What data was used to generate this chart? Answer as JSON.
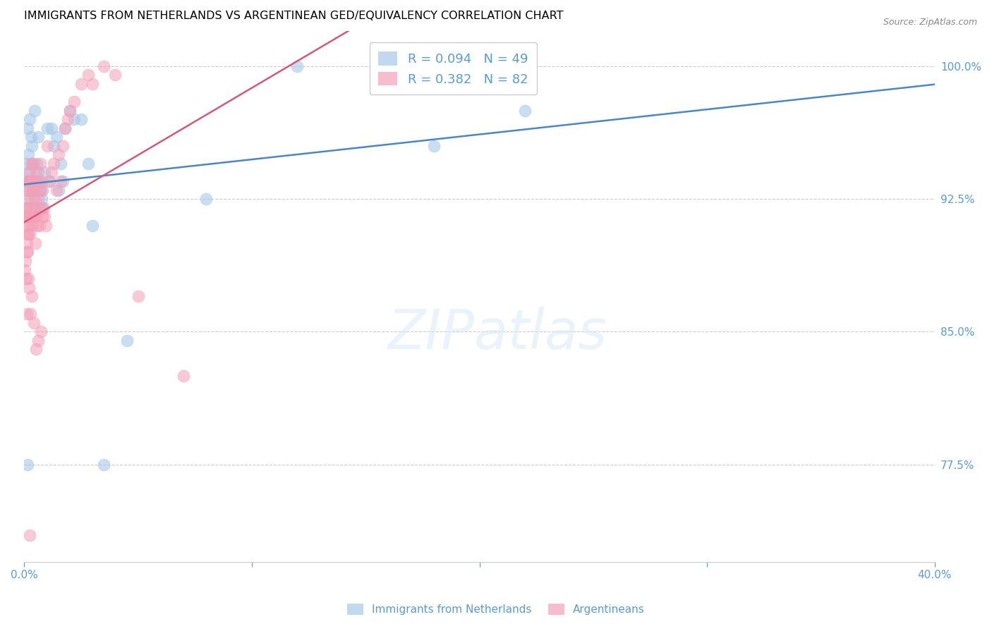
{
  "title": "IMMIGRANTS FROM NETHERLANDS VS ARGENTINEAN GED/EQUIVALENCY CORRELATION CHART",
  "source": "Source: ZipAtlas.com",
  "legend_label1": "Immigrants from Netherlands",
  "legend_label2": "Argentineans",
  "R1": 0.094,
  "N1": 49,
  "R2": 0.382,
  "N2": 82,
  "blue_color": "#a8c8e8",
  "pink_color": "#f4a0b8",
  "blue_line_color": "#4a86c8",
  "pink_line_color": "#d45878",
  "axis_color": "#5b9bd5",
  "xmin": 0.0,
  "xmax": 40.0,
  "ymin": 72.0,
  "ymax": 102.0,
  "ylabel_ticks": [
    100.0,
    92.5,
    85.0,
    77.5
  ],
  "ylabel_labels": [
    "100.0%",
    "92.5%",
    "85.0%",
    "77.5%"
  ],
  "blue_x": [
    0.05,
    0.08,
    0.1,
    0.12,
    0.15,
    0.18,
    0.2,
    0.22,
    0.25,
    0.28,
    0.3,
    0.32,
    0.35,
    0.38,
    0.4,
    0.45,
    0.5,
    0.55,
    0.6,
    0.65,
    0.7,
    0.75,
    0.8,
    0.9,
    1.0,
    1.1,
    1.2,
    1.3,
    1.4,
    1.5,
    1.6,
    1.8,
    2.0,
    2.2,
    2.5,
    3.0,
    3.5,
    8.0,
    12.0,
    18.0,
    22.0,
    1.7,
    2.8,
    0.42,
    0.52,
    0.62,
    0.72,
    4.5,
    0.15
  ],
  "blue_y": [
    91.5,
    92.0,
    93.5,
    94.5,
    96.5,
    95.0,
    93.0,
    94.0,
    97.0,
    92.5,
    96.0,
    95.5,
    94.5,
    93.0,
    93.0,
    97.5,
    94.0,
    94.5,
    96.0,
    93.5,
    93.0,
    92.5,
    92.0,
    94.0,
    96.5,
    93.5,
    96.5,
    95.5,
    96.0,
    93.0,
    94.5,
    96.5,
    97.5,
    97.0,
    97.0,
    91.0,
    77.5,
    92.5,
    100.0,
    95.5,
    97.5,
    93.5,
    94.5,
    93.0,
    92.0,
    93.5,
    93.0,
    84.5,
    77.5
  ],
  "pink_x": [
    0.03,
    0.05,
    0.07,
    0.08,
    0.1,
    0.1,
    0.12,
    0.13,
    0.15,
    0.15,
    0.17,
    0.18,
    0.2,
    0.2,
    0.22,
    0.23,
    0.25,
    0.25,
    0.27,
    0.28,
    0.3,
    0.3,
    0.32,
    0.33,
    0.35,
    0.37,
    0.38,
    0.4,
    0.42,
    0.43,
    0.45,
    0.47,
    0.5,
    0.52,
    0.55,
    0.57,
    0.6,
    0.62,
    0.65,
    0.67,
    0.7,
    0.72,
    0.75,
    0.78,
    0.8,
    0.85,
    0.9,
    0.95,
    1.0,
    1.1,
    1.2,
    1.3,
    1.4,
    1.5,
    1.6,
    1.7,
    1.8,
    1.9,
    2.0,
    2.2,
    2.5,
    2.8,
    3.0,
    3.5,
    4.0,
    5.0,
    0.08,
    0.1,
    0.13,
    0.15,
    0.18,
    0.22,
    0.28,
    0.32,
    0.42,
    0.52,
    0.62,
    0.72,
    7.0,
    0.08,
    0.12,
    0.25
  ],
  "pink_y": [
    88.5,
    89.0,
    91.5,
    92.0,
    91.5,
    90.0,
    93.0,
    92.5,
    93.5,
    91.5,
    93.5,
    90.5,
    92.0,
    93.5,
    91.0,
    94.0,
    93.5,
    90.5,
    93.0,
    91.5,
    94.5,
    92.0,
    93.5,
    91.5,
    93.5,
    91.0,
    93.0,
    94.5,
    91.5,
    92.5,
    92.0,
    90.0,
    93.5,
    91.5,
    93.5,
    91.0,
    94.0,
    92.5,
    93.0,
    91.0,
    94.5,
    92.0,
    93.5,
    91.5,
    93.0,
    92.0,
    91.5,
    91.0,
    95.5,
    93.5,
    94.0,
    94.5,
    93.0,
    95.0,
    93.5,
    95.5,
    96.5,
    97.0,
    97.5,
    98.0,
    99.0,
    99.5,
    99.0,
    100.0,
    99.5,
    87.0,
    88.0,
    89.5,
    90.5,
    89.5,
    88.0,
    87.5,
    86.0,
    87.0,
    85.5,
    84.0,
    84.5,
    85.0,
    82.5,
    91.0,
    86.0,
    73.5
  ]
}
